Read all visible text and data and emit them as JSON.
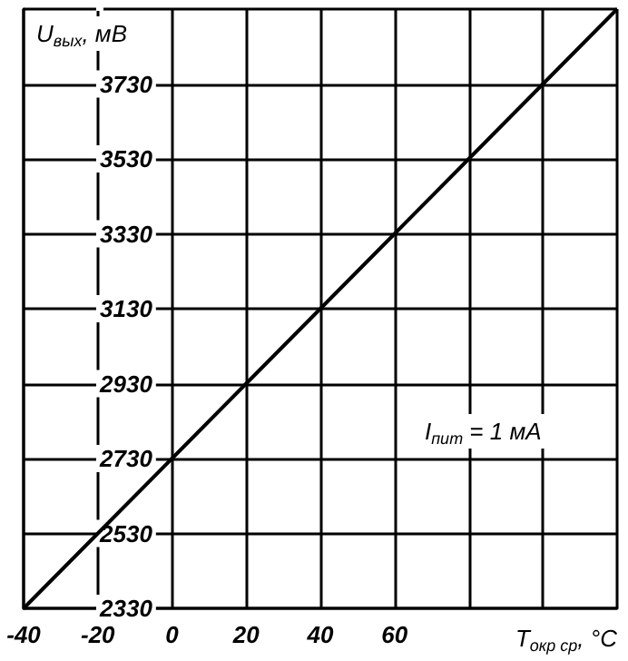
{
  "chart_data": {
    "type": "line",
    "xlabel": "T$_{окр ср}$, °C",
    "ylabel": "U$_{вых}$, мВ",
    "annotations": [
      "I$_{пит}$ = 1 мА"
    ],
    "x": [
      -40,
      -20,
      0,
      20,
      40,
      60,
      80,
      100,
      120
    ],
    "values": [
      2330,
      2530,
      2730,
      2930,
      3130,
      3330,
      3530,
      3730,
      3930
    ],
    "color": "#000000",
    "xlim": [
      -40,
      120
    ],
    "ylim": [
      2330,
      3930
    ],
    "xticks": [
      -40,
      -20,
      0,
      20,
      40,
      60,
      {
        "value": 80,
        "label": null
      },
      {
        "value": 100,
        "label": null
      },
      {
        "value": 120,
        "label": null
      }
    ],
    "yticks": [
      2330,
      2530,
      2730,
      2930,
      3130,
      3330,
      3530,
      3730,
      {
        "value": 3930,
        "label": null
      }
    ],
    "grid": true
  }
}
